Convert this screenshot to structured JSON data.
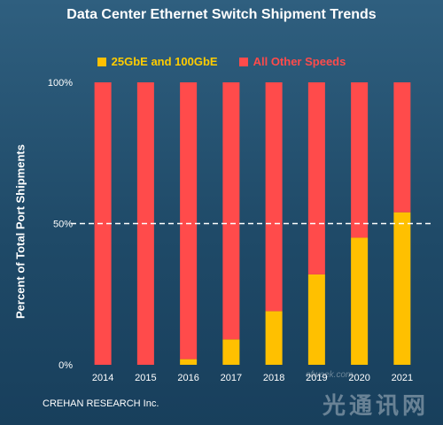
{
  "chart_data": {
    "type": "bar",
    "stacked": true,
    "title": "Data Center Ethernet Switch Shipment Trends",
    "ylabel": "Percent of Total Port Shipments",
    "xlabel": "",
    "categories": [
      "2014",
      "2015",
      "2016",
      "2017",
      "2018",
      "2019",
      "2020",
      "2021"
    ],
    "series": [
      {
        "name": "25GbE and 100GbE",
        "color": "#ffc000",
        "values": [
          0,
          0,
          2,
          9,
          19,
          32,
          45,
          54
        ]
      },
      {
        "name": "All Other Speeds",
        "color": "#ff4b4b",
        "values": [
          100,
          100,
          98,
          91,
          81,
          68,
          55,
          46
        ]
      }
    ],
    "ylim": [
      0,
      100
    ],
    "yticks": [
      "0%",
      "50%",
      "100%"
    ],
    "reference_line": {
      "value": 50,
      "style": "dashed",
      "color": "#ffffff"
    },
    "legend_position": "top"
  },
  "source": "CREHAN RESEARCH Inc.",
  "watermark": {
    "text": "光通讯网",
    "url": "ofweek.com"
  }
}
